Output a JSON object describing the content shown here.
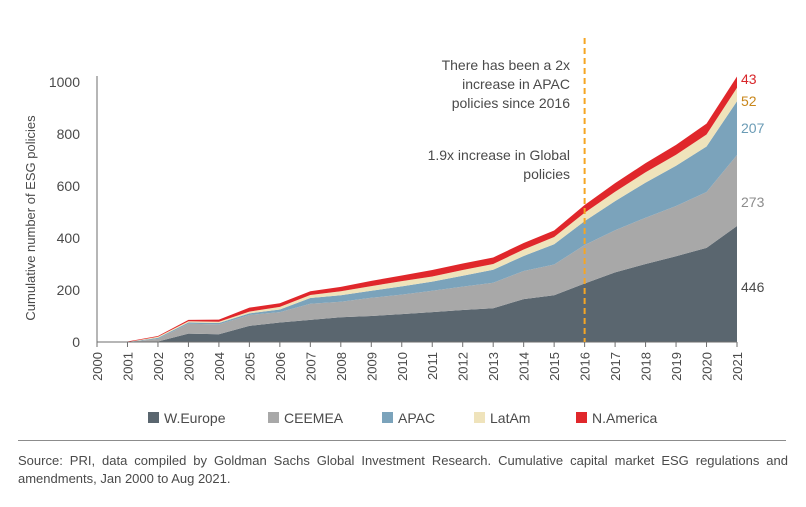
{
  "chart_data": {
    "type": "area",
    "stacked": true,
    "ylabel": "Cumulative number of ESG policies",
    "xlabel": "",
    "ylim": [
      0,
      1000
    ],
    "yticks": [
      0,
      200,
      400,
      600,
      800,
      1000
    ],
    "x": [
      "2000",
      "2001",
      "2002",
      "2003",
      "2004",
      "2005",
      "2006",
      "2007",
      "2008",
      "2009",
      "2010",
      "2011",
      "2012",
      "2013",
      "2014",
      "2015",
      "2016",
      "2017",
      "2018",
      "2019",
      "2020",
      "2021"
    ],
    "series": [
      {
        "name": "W.Europe",
        "color": "#5a666f",
        "values": [
          0,
          0,
          2,
          32,
          30,
          62,
          75,
          85,
          95,
          100,
          107,
          115,
          123,
          130,
          165,
          180,
          225,
          268,
          300,
          330,
          362,
          446
        ]
      },
      {
        "name": "CEEMEA",
        "color": "#a8a8a8",
        "values": [
          0,
          0,
          10,
          38,
          38,
          42,
          40,
          62,
          60,
          70,
          75,
          82,
          90,
          98,
          108,
          118,
          148,
          162,
          178,
          193,
          215,
          273
        ]
      },
      {
        "name": "APAC",
        "color": "#7ba3bb",
        "values": [
          0,
          0,
          4,
          5,
          5,
          6,
          10,
          22,
          25,
          27,
          32,
          35,
          42,
          50,
          58,
          78,
          92,
          112,
          135,
          155,
          175,
          207
        ]
      },
      {
        "name": "LatAm",
        "color": "#efe3bb",
        "values": [
          0,
          0,
          4,
          5,
          5,
          7,
          10,
          12,
          15,
          18,
          20,
          20,
          22,
          22,
          25,
          28,
          32,
          36,
          40,
          42,
          46,
          52
        ]
      },
      {
        "name": "N.America",
        "color": "#e0272b",
        "values": [
          2,
          2,
          3,
          5,
          8,
          15,
          14,
          14,
          17,
          20,
          22,
          25,
          25,
          25,
          25,
          25,
          30,
          33,
          35,
          38,
          42,
          43
        ]
      }
    ],
    "end_labels": [
      {
        "text": "446",
        "series": "W.Europe",
        "color": "#4a4a4a"
      },
      {
        "text": "273",
        "series": "CEEMEA",
        "color": "#8c8c8c"
      },
      {
        "text": "207",
        "series": "APAC",
        "color": "#6a9bb5"
      },
      {
        "text": "52",
        "series": "LatAm",
        "color": "#c8861a"
      },
      {
        "text": "43",
        "series": "N.America",
        "color": "#d8262a"
      }
    ],
    "annotations": [
      {
        "lines": [
          "There has been a 2x",
          "increase in APAC",
          "policies since 2016"
        ]
      },
      {
        "lines": [
          "1.9x increase in Global",
          "policies"
        ]
      }
    ],
    "marker_year": "2016",
    "marker_color": "#f5a623",
    "legend_position": "bottom",
    "grid": false
  },
  "source": "Source: PRI, data compiled by Goldman Sachs Global Investment Research. Cumulative capital market ESG regulations and amendments, Jan 2000 to Aug 2021."
}
